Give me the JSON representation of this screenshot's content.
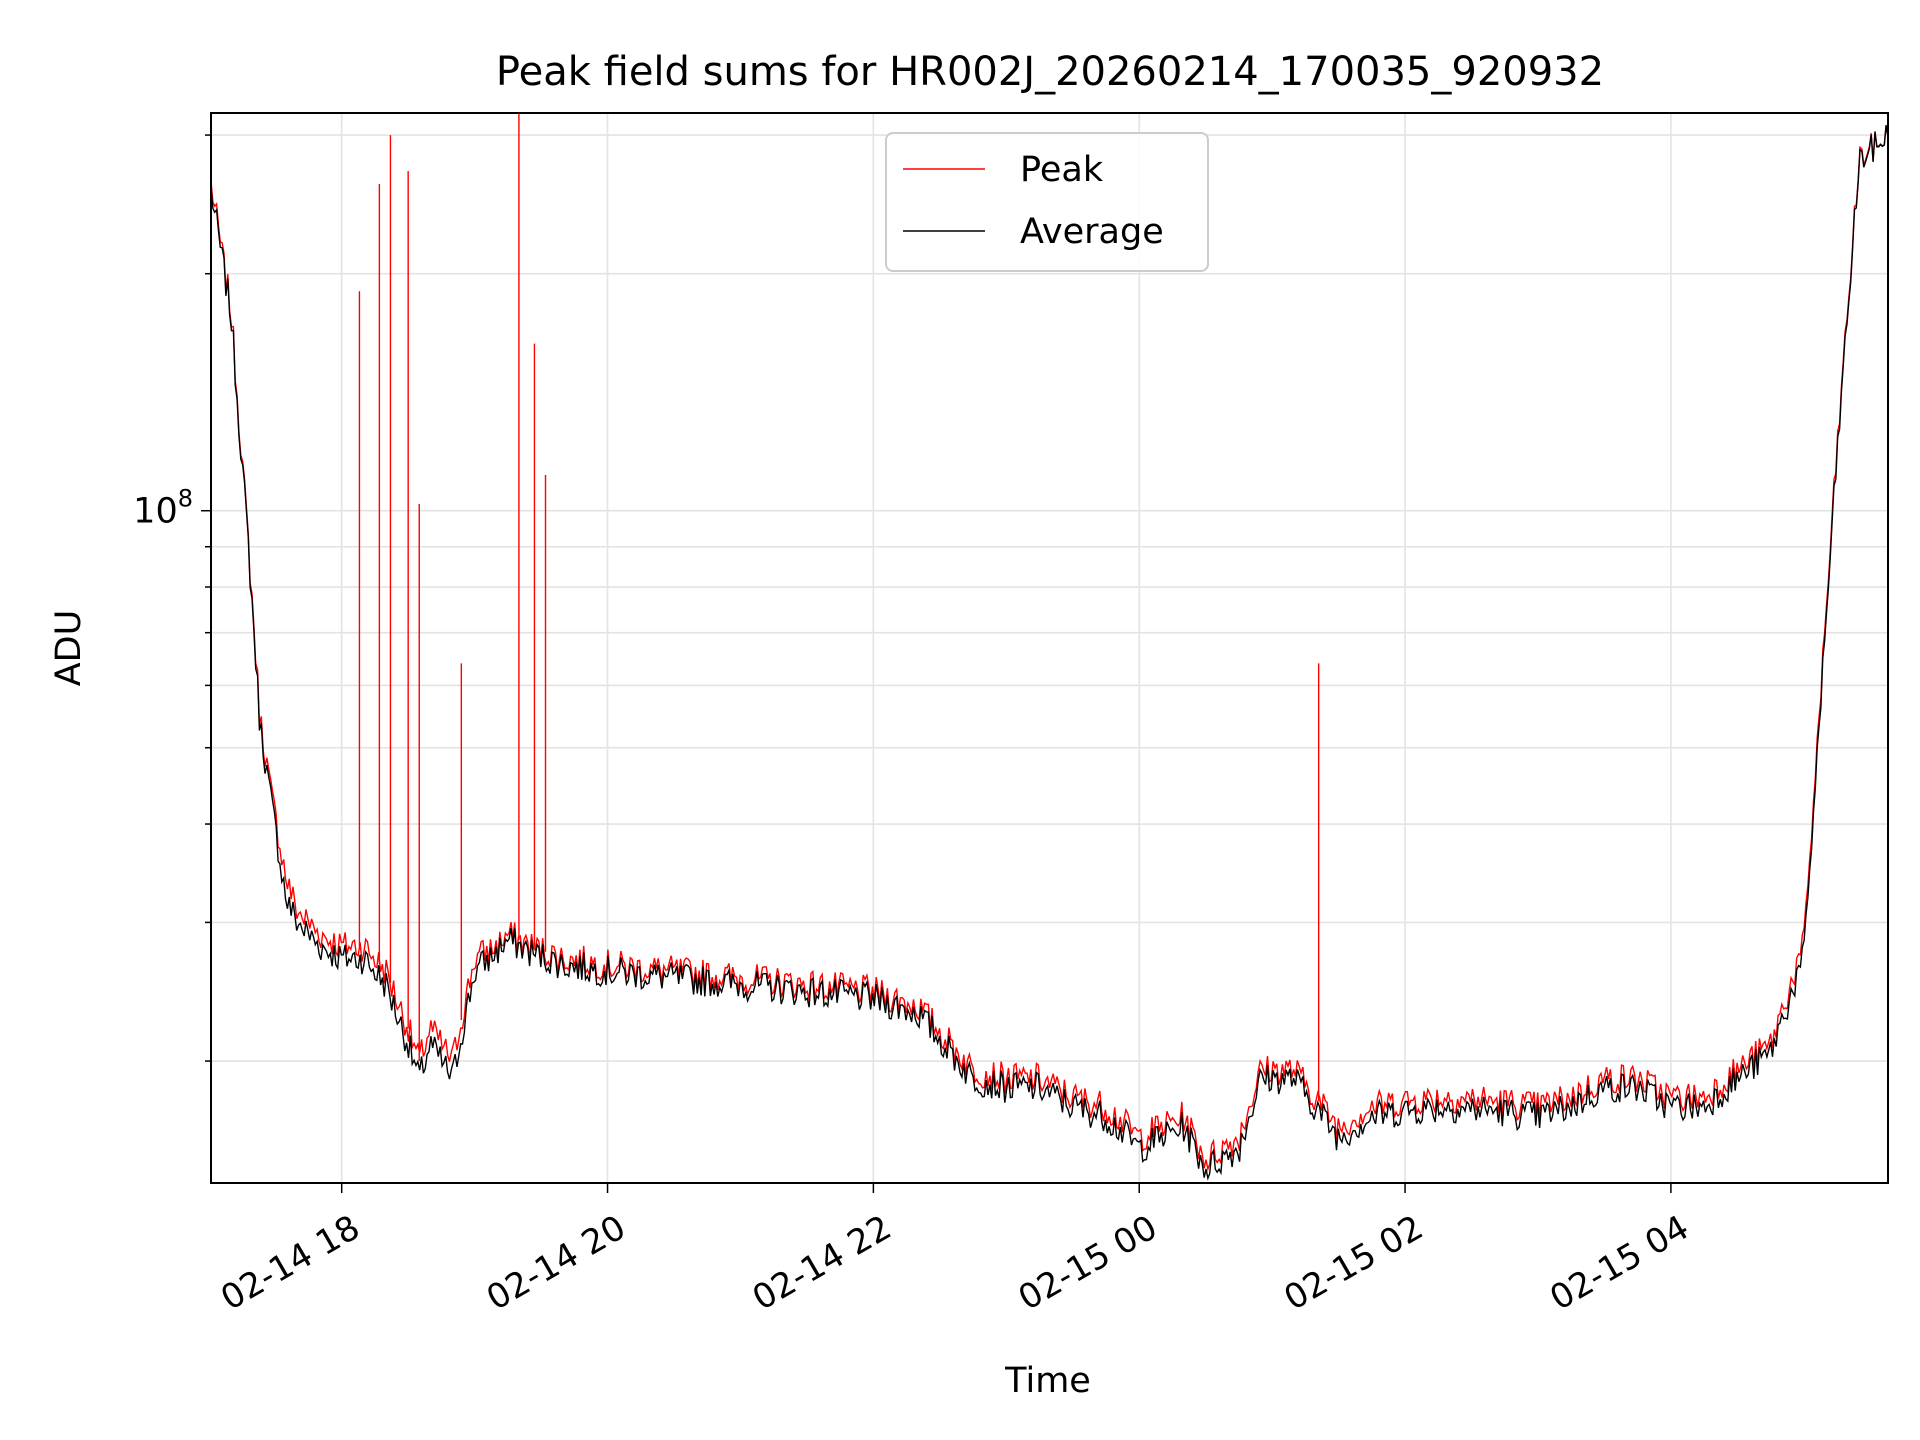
{
  "chart_data": {
    "type": "line",
    "title": "Peak field sums for HR002J_20260214_170035_920932",
    "xlabel": "Time",
    "ylabel": "ADU",
    "yscale": "log",
    "xlim": [
      "2026-02-14 17:01",
      "2026-02-15 05:38"
    ],
    "ylim": [
      14000000,
      320000000
    ],
    "x_ticks": [
      "2026-02-14 18:00",
      "2026-02-14 20:00",
      "2026-02-14 22:00",
      "2026-02-15 00:00",
      "2026-02-15 02:00",
      "2026-02-15 04:00"
    ],
    "x_tick_labels": [
      "02-14 18",
      "02-14 20",
      "02-14 22",
      "02-15 00",
      "02-15 02",
      "02-15 04"
    ],
    "y_tick_values": [
      100000000
    ],
    "y_tick_labels": [
      {
        "base": "10",
        "exp": "8"
      }
    ],
    "grid": true,
    "legend_position": "upper-center",
    "series": [
      {
        "name": "Peak",
        "color": "#ff0000",
        "x": [
          "2026-02-14 17:01",
          "2026-02-14 17:10",
          "2026-02-14 17:18",
          "2026-02-14 17:23",
          "2026-02-14 17:28",
          "2026-02-14 17:35",
          "2026-02-14 17:40",
          "2026-02-14 17:50",
          "2026-02-14 18:00",
          "2026-02-14 18:10",
          "2026-02-14 18:20",
          "2026-02-14 18:30",
          "2026-02-14 18:35",
          "2026-02-14 18:40",
          "2026-02-14 18:50",
          "2026-02-14 19:00",
          "2026-02-14 19:10",
          "2026-02-14 19:15",
          "2026-02-14 19:25",
          "2026-02-14 19:40",
          "2026-02-14 20:00",
          "2026-02-14 20:30",
          "2026-02-14 21:00",
          "2026-02-14 21:30",
          "2026-02-14 22:00",
          "2026-02-14 22:20",
          "2026-02-14 22:35",
          "2026-02-14 22:45",
          "2026-02-14 23:00",
          "2026-02-14 23:15",
          "2026-02-14 23:30",
          "2026-02-14 23:45",
          "2026-02-15 00:00",
          "2026-02-15 00:10",
          "2026-02-15 00:20",
          "2026-02-15 00:30",
          "2026-02-15 00:45",
          "2026-02-15 00:55",
          "2026-02-15 01:10",
          "2026-02-15 01:30",
          "2026-02-15 01:45",
          "2026-02-15 02:00",
          "2026-02-15 02:20",
          "2026-02-15 02:40",
          "2026-02-15 03:00",
          "2026-02-15 03:15",
          "2026-02-15 03:30",
          "2026-02-15 03:45",
          "2026-02-15 04:00",
          "2026-02-15 04:15",
          "2026-02-15 04:30",
          "2026-02-15 04:45",
          "2026-02-15 05:00",
          "2026-02-15 05:15",
          "2026-02-15 05:25",
          "2026-02-15 05:38"
        ],
        "y": [
          260000000,
          180000000,
          90000000,
          55000000,
          44000000,
          34000000,
          31000000,
          29000000,
          28000000,
          28000000,
          26000000,
          22000000,
          20000000,
          22000000,
          20000000,
          27000000,
          28000000,
          29000000,
          28000000,
          27000000,
          26500000,
          26000000,
          25500000,
          25000000,
          24500000,
          23500000,
          21000000,
          19500000,
          19000000,
          19000000,
          18000000,
          17500000,
          16000000,
          16500000,
          17000000,
          15000000,
          16000000,
          19500000,
          19500000,
          16500000,
          17500000,
          17800000,
          18000000,
          17800000,
          17500000,
          18000000,
          19000000,
          19000000,
          18000000,
          18000000,
          19500000,
          21000000,
          28000000,
          120000000,
          280000000,
          300000000
        ],
        "spikes": [
          {
            "x": "2026-02-14 18:08",
            "y": 190000000
          },
          {
            "x": "2026-02-14 18:17",
            "y": 260000000
          },
          {
            "x": "2026-02-14 18:22",
            "y": 300000000
          },
          {
            "x": "2026-02-14 18:30",
            "y": 270000000
          },
          {
            "x": "2026-02-14 18:35",
            "y": 102000000
          },
          {
            "x": "2026-02-14 18:54",
            "y": 64000000
          },
          {
            "x": "2026-02-14 19:20",
            "y": 320000000
          },
          {
            "x": "2026-02-14 19:27",
            "y": 163000000
          },
          {
            "x": "2026-02-14 19:32",
            "y": 111000000
          },
          {
            "x": "2026-02-15 01:21",
            "y": 64000000
          }
        ]
      },
      {
        "name": "Average",
        "color": "#000000",
        "x": [
          "2026-02-14 17:01",
          "2026-02-14 17:10",
          "2026-02-14 17:18",
          "2026-02-14 17:23",
          "2026-02-14 17:28",
          "2026-02-14 17:35",
          "2026-02-14 17:40",
          "2026-02-14 17:50",
          "2026-02-14 18:00",
          "2026-02-14 18:10",
          "2026-02-14 18:20",
          "2026-02-14 18:30",
          "2026-02-14 18:35",
          "2026-02-14 18:40",
          "2026-02-14 18:50",
          "2026-02-14 19:00",
          "2026-02-14 19:10",
          "2026-02-14 19:15",
          "2026-02-14 19:25",
          "2026-02-14 19:40",
          "2026-02-14 20:00",
          "2026-02-14 20:30",
          "2026-02-14 21:00",
          "2026-02-14 21:30",
          "2026-02-14 22:00",
          "2026-02-14 22:20",
          "2026-02-14 22:35",
          "2026-02-14 22:45",
          "2026-02-14 23:00",
          "2026-02-14 23:15",
          "2026-02-14 23:30",
          "2026-02-14 23:45",
          "2026-02-15 00:00",
          "2026-02-15 00:10",
          "2026-02-15 00:20",
          "2026-02-15 00:30",
          "2026-02-15 00:45",
          "2026-02-15 00:55",
          "2026-02-15 01:10",
          "2026-02-15 01:30",
          "2026-02-15 01:45",
          "2026-02-15 02:00",
          "2026-02-15 02:20",
          "2026-02-15 02:40",
          "2026-02-15 03:00",
          "2026-02-15 03:15",
          "2026-02-15 03:30",
          "2026-02-15 03:45",
          "2026-02-15 04:00",
          "2026-02-15 04:15",
          "2026-02-15 04:30",
          "2026-02-15 04:45",
          "2026-02-15 05:00",
          "2026-02-15 05:15",
          "2026-02-15 05:25",
          "2026-02-15 05:38"
        ],
        "y": [
          255000000,
          178000000,
          89000000,
          54000000,
          43000000,
          32000000,
          30000000,
          28000000,
          27000000,
          27000000,
          25000000,
          21000000,
          19000000,
          21000000,
          19000000,
          26000000,
          27500000,
          28500000,
          27500000,
          26500000,
          26000000,
          25500000,
          25000000,
          24500000,
          24000000,
          23000000,
          20500000,
          19000000,
          18500000,
          18500000,
          17500000,
          17000000,
          15500000,
          16000000,
          16500000,
          14600000,
          15500000,
          19000000,
          19000000,
          16000000,
          17000000,
          17300000,
          17500000,
          17300000,
          17000000,
          17500000,
          18500000,
          18500000,
          17500000,
          17500000,
          19000000,
          20500000,
          27000000,
          118000000,
          278000000,
          300000000
        ]
      }
    ]
  }
}
